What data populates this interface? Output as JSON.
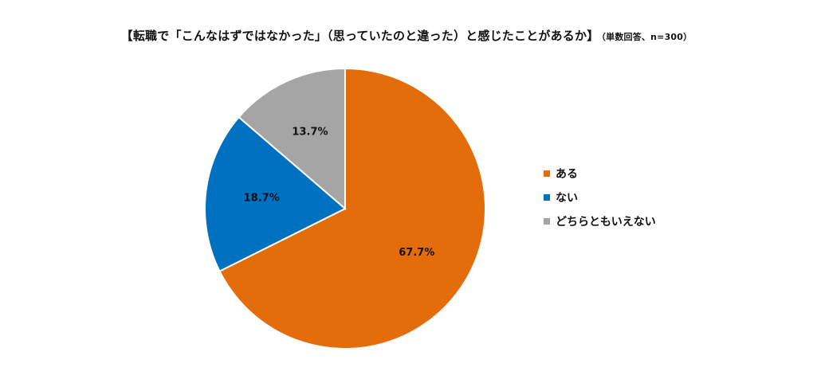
{
  "chart_data": {
    "type": "pie",
    "title": "【転職で「こんなはずではなかった」（思っていたのと違った）と感じたことがあるか】",
    "subtitle": "（単数回答、n=300）",
    "slices": [
      {
        "label": "ある",
        "value": 67.7,
        "value_label": "67.7%",
        "color": "#E46C0A"
      },
      {
        "label": "ない",
        "value": 18.7,
        "value_label": "18.7%",
        "color": "#0070C0"
      },
      {
        "label": "どちらともいえない",
        "value": 13.7,
        "value_label": "13.7%",
        "color": "#A5A5A5"
      }
    ],
    "start": "12 o'clock",
    "direction": "clockwise",
    "legend_position": "right"
  }
}
